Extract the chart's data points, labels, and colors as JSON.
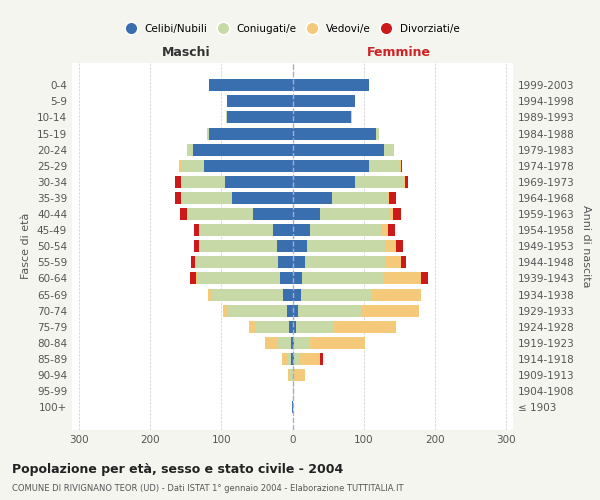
{
  "age_groups": [
    "100+",
    "95-99",
    "90-94",
    "85-89",
    "80-84",
    "75-79",
    "70-74",
    "65-69",
    "60-64",
    "55-59",
    "50-54",
    "45-49",
    "40-44",
    "35-39",
    "30-34",
    "25-29",
    "20-24",
    "15-19",
    "10-14",
    "5-9",
    "0-4"
  ],
  "birth_years": [
    "≤ 1903",
    "1904-1908",
    "1909-1913",
    "1914-1918",
    "1919-1923",
    "1924-1928",
    "1929-1933",
    "1934-1938",
    "1939-1943",
    "1944-1948",
    "1949-1953",
    "1954-1958",
    "1959-1963",
    "1964-1968",
    "1969-1973",
    "1974-1978",
    "1979-1983",
    "1984-1988",
    "1989-1993",
    "1994-1998",
    "1999-2003"
  ],
  "maschi": {
    "celibi": [
      1,
      0,
      0,
      2,
      2,
      5,
      8,
      14,
      18,
      20,
      22,
      28,
      55,
      85,
      95,
      125,
      140,
      118,
      92,
      92,
      118
    ],
    "coniugati": [
      0,
      0,
      3,
      5,
      18,
      48,
      82,
      100,
      115,
      115,
      108,
      102,
      93,
      72,
      62,
      32,
      8,
      2,
      1,
      0,
      0
    ],
    "vedovi": [
      0,
      0,
      3,
      8,
      18,
      8,
      8,
      5,
      3,
      2,
      1,
      1,
      0,
      0,
      0,
      2,
      1,
      0,
      0,
      0,
      0
    ],
    "divorziati": [
      0,
      0,
      0,
      0,
      0,
      0,
      0,
      0,
      8,
      6,
      8,
      8,
      10,
      8,
      8,
      0,
      0,
      0,
      0,
      0,
      0
    ]
  },
  "femmine": {
    "nubili": [
      0,
      0,
      0,
      2,
      2,
      5,
      8,
      12,
      14,
      18,
      20,
      24,
      38,
      55,
      88,
      108,
      128,
      118,
      82,
      88,
      108
    ],
    "coniugate": [
      0,
      0,
      2,
      8,
      22,
      52,
      88,
      100,
      115,
      112,
      110,
      102,
      98,
      78,
      68,
      42,
      14,
      3,
      1,
      0,
      0
    ],
    "vedove": [
      1,
      2,
      15,
      28,
      78,
      88,
      82,
      68,
      52,
      22,
      15,
      8,
      5,
      3,
      2,
      2,
      0,
      0,
      0,
      0,
      0
    ],
    "divorziate": [
      0,
      0,
      0,
      5,
      0,
      0,
      0,
      0,
      10,
      8,
      10,
      10,
      12,
      10,
      5,
      2,
      0,
      0,
      0,
      0,
      0
    ]
  },
  "colors": {
    "celibi_nubili": "#3a6faf",
    "coniugati": "#c8d9a8",
    "vedovi": "#f5c97a",
    "divorziati": "#cc1a1a"
  },
  "title": "Popolazione per età, sesso e stato civile - 2004",
  "subtitle": "COMUNE DI RIVIGNANO TEOR (UD) - Dati ISTAT 1° gennaio 2004 - Elaborazione TUTTITALIA.IT",
  "xlabel_left": "Maschi",
  "xlabel_right": "Femmine",
  "ylabel_left": "Fasce di età",
  "ylabel_right": "Anni di nascita",
  "xlim": 310,
  "background_color": "#f5f5f0",
  "plot_bg": "#ffffff",
  "legend_labels": [
    "Celibi/Nubili",
    "Coniugati/e",
    "Vedovi/e",
    "Divorziati/e"
  ]
}
